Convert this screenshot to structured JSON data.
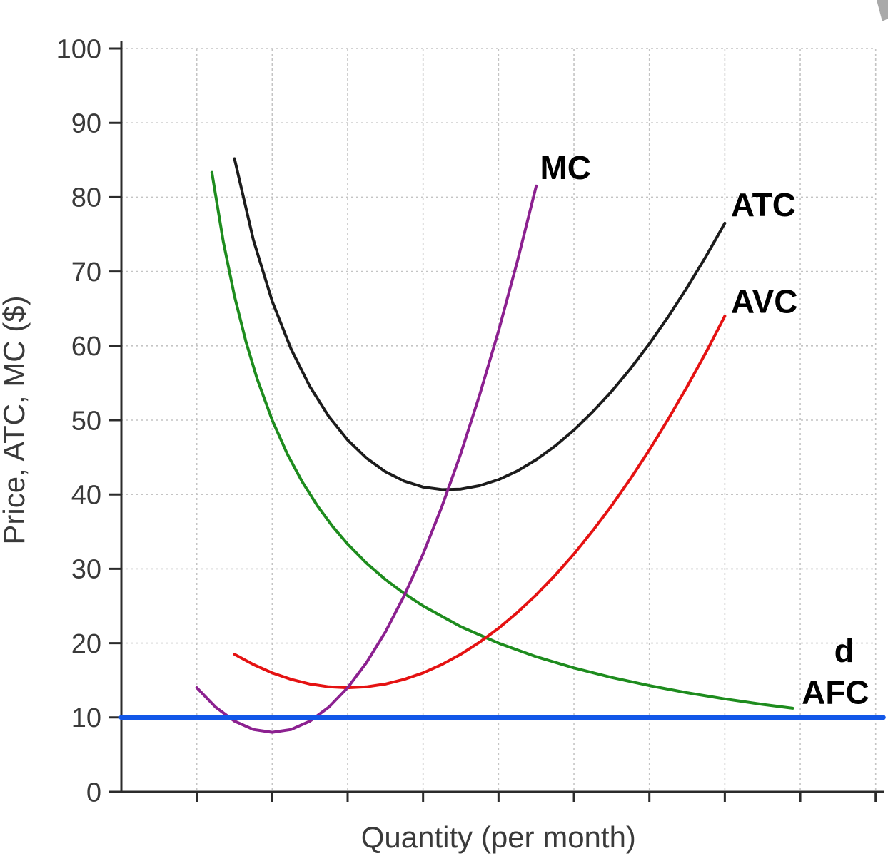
{
  "page": {
    "background": "#ffffff"
  },
  "decorations": {
    "corner_artifact_color": "#9a9a9a"
  },
  "chart_data": {
    "type": "line",
    "title": "",
    "xlabel": "Quantity (per month)",
    "ylabel": "Price, ATC, MC ($)",
    "xlim": [
      0,
      10.05
    ],
    "ylim": [
      0,
      100
    ],
    "x_gridlines": [
      1,
      2,
      3,
      4,
      5,
      6,
      7,
      8,
      9,
      10
    ],
    "y_ticks": [
      0,
      10,
      20,
      30,
      40,
      50,
      60,
      70,
      80,
      90,
      100
    ],
    "grid": "dashed",
    "grid_color": "#c4c4c4",
    "axis_color": "#2b2b2b",
    "text_color": "#3a3a3a",
    "legend_position": "inline-labels",
    "series": [
      {
        "name": "AFC",
        "color": "#1e8c1e",
        "width": 4,
        "label": {
          "text": "AFC",
          "x": 9.02,
          "y": 13.4,
          "anchor": "start"
        },
        "points": [
          [
            1.2,
            83.33
          ],
          [
            1.35,
            74.07
          ],
          [
            1.5,
            66.67
          ],
          [
            1.65,
            60.61
          ],
          [
            1.8,
            55.56
          ],
          [
            2,
            50
          ],
          [
            2.2,
            45.45
          ],
          [
            2.4,
            41.67
          ],
          [
            2.6,
            38.46
          ],
          [
            2.8,
            35.71
          ],
          [
            3,
            33.33
          ],
          [
            3.25,
            30.77
          ],
          [
            3.5,
            28.57
          ],
          [
            3.75,
            26.67
          ],
          [
            4,
            25
          ],
          [
            4.5,
            22.22
          ],
          [
            5,
            20
          ],
          [
            5.5,
            18.18
          ],
          [
            6,
            16.67
          ],
          [
            6.5,
            15.38
          ],
          [
            7,
            14.29
          ],
          [
            7.5,
            13.33
          ],
          [
            8,
            12.5
          ],
          [
            8.5,
            11.76
          ],
          [
            8.9,
            11.24
          ]
        ]
      },
      {
        "name": "ATC",
        "color": "#1c1c1c",
        "width": 4,
        "label": {
          "text": "ATC",
          "x": 8.08,
          "y": 79,
          "anchor": "start"
        },
        "points": [
          [
            1.5,
            85.17
          ],
          [
            1.75,
            74.27
          ],
          [
            2,
            66
          ],
          [
            2.25,
            59.57
          ],
          [
            2.5,
            54.5
          ],
          [
            2.75,
            50.49
          ],
          [
            3,
            47.33
          ],
          [
            3.25,
            44.9
          ],
          [
            3.5,
            43.07
          ],
          [
            3.75,
            41.79
          ],
          [
            4,
            41
          ],
          [
            4.25,
            40.65
          ],
          [
            4.5,
            40.72
          ],
          [
            4.75,
            41.18
          ],
          [
            5,
            42
          ],
          [
            5.25,
            43.17
          ],
          [
            5.5,
            44.68
          ],
          [
            5.75,
            46.52
          ],
          [
            6,
            48.67
          ],
          [
            6.25,
            51.13
          ],
          [
            6.5,
            53.88
          ],
          [
            6.75,
            56.94
          ],
          [
            7,
            60.29
          ],
          [
            7.25,
            63.92
          ],
          [
            7.5,
            67.83
          ],
          [
            7.75,
            72.03
          ],
          [
            8,
            76.5
          ]
        ]
      },
      {
        "name": "AVC",
        "color": "#e51212",
        "width": 4,
        "label": {
          "text": "AVC",
          "x": 8.08,
          "y": 66,
          "anchor": "start"
        },
        "points": [
          [
            1.5,
            18.5
          ],
          [
            1.75,
            17.13
          ],
          [
            2,
            16
          ],
          [
            2.25,
            15.13
          ],
          [
            2.5,
            14.5
          ],
          [
            2.75,
            14.13
          ],
          [
            3,
            14
          ],
          [
            3.25,
            14.13
          ],
          [
            3.5,
            14.5
          ],
          [
            3.75,
            15.13
          ],
          [
            4,
            16
          ],
          [
            4.25,
            17.13
          ],
          [
            4.5,
            18.5
          ],
          [
            4.75,
            20.13
          ],
          [
            5,
            22
          ],
          [
            5.25,
            24.13
          ],
          [
            5.5,
            26.5
          ],
          [
            5.75,
            29.13
          ],
          [
            6,
            32
          ],
          [
            6.25,
            35.13
          ],
          [
            6.5,
            38.5
          ],
          [
            6.75,
            42.13
          ],
          [
            7,
            46
          ],
          [
            7.25,
            50.13
          ],
          [
            7.5,
            54.5
          ],
          [
            7.75,
            59.13
          ],
          [
            8,
            64
          ]
        ]
      },
      {
        "name": "MC",
        "color": "#8c2190",
        "width": 4,
        "label": {
          "text": "MC",
          "x": 5.55,
          "y": 84,
          "anchor": "start"
        },
        "points": [
          [
            1,
            14
          ],
          [
            1.25,
            11.38
          ],
          [
            1.5,
            9.5
          ],
          [
            1.75,
            8.38
          ],
          [
            2,
            8
          ],
          [
            2.25,
            8.38
          ],
          [
            2.5,
            9.5
          ],
          [
            2.75,
            11.38
          ],
          [
            3,
            14
          ],
          [
            3.25,
            17.38
          ],
          [
            3.5,
            21.5
          ],
          [
            3.75,
            26.38
          ],
          [
            4,
            32
          ],
          [
            4.25,
            38.38
          ],
          [
            4.5,
            45.5
          ],
          [
            4.75,
            53.38
          ],
          [
            5,
            62
          ],
          [
            5.25,
            71.38
          ],
          [
            5.5,
            81.5
          ]
        ]
      },
      {
        "name": "d",
        "color": "#1257e8",
        "width": 7,
        "label": {
          "text": "d",
          "x": 9.45,
          "y": 19,
          "anchor": "start"
        },
        "points": [
          [
            0,
            10
          ],
          [
            10.1,
            10
          ]
        ]
      }
    ]
  }
}
